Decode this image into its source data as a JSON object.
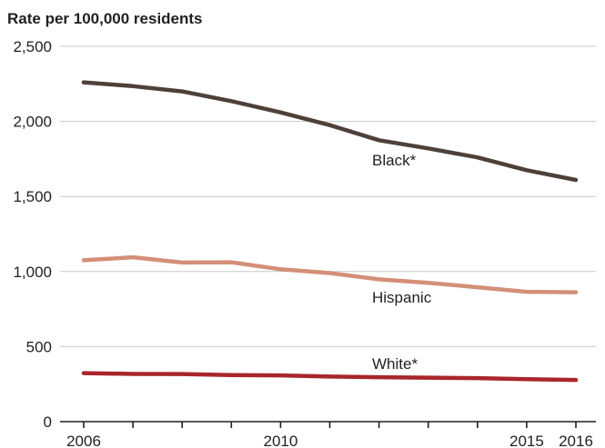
{
  "chart_data": {
    "type": "line",
    "ylabel": "Rate per 100,000 residents",
    "ylim": [
      0,
      2500
    ],
    "yticks": [
      0,
      500,
      1000,
      1500,
      2000,
      2500
    ],
    "ytick_labels": [
      "0",
      "500",
      "1,000",
      "1,500",
      "2,000",
      "2,500"
    ],
    "x": [
      2006,
      2007,
      2008,
      2009,
      2010,
      2011,
      2012,
      2013,
      2014,
      2015,
      2016
    ],
    "xticks": [
      2006,
      2010,
      2015,
      2016
    ],
    "xtick_labels": [
      "2006",
      "2010",
      "2015",
      "2016"
    ],
    "grid": true,
    "legend": "inline labels",
    "series": [
      {
        "name": "Black*",
        "color": "#4e4039",
        "values": [
          2260,
          2235,
          2200,
          2135,
          2060,
          1975,
          1875,
          1820,
          1760,
          1675,
          1610
        ]
      },
      {
        "name": "Hispanic",
        "color": "#d48f78",
        "values": [
          1075,
          1095,
          1060,
          1062,
          1015,
          990,
          948,
          925,
          895,
          865,
          862
        ]
      },
      {
        "name": "White*",
        "color": "#a8262a",
        "values": [
          323,
          318,
          317,
          310,
          308,
          300,
          296,
          293,
          290,
          283,
          278
        ]
      }
    ]
  }
}
